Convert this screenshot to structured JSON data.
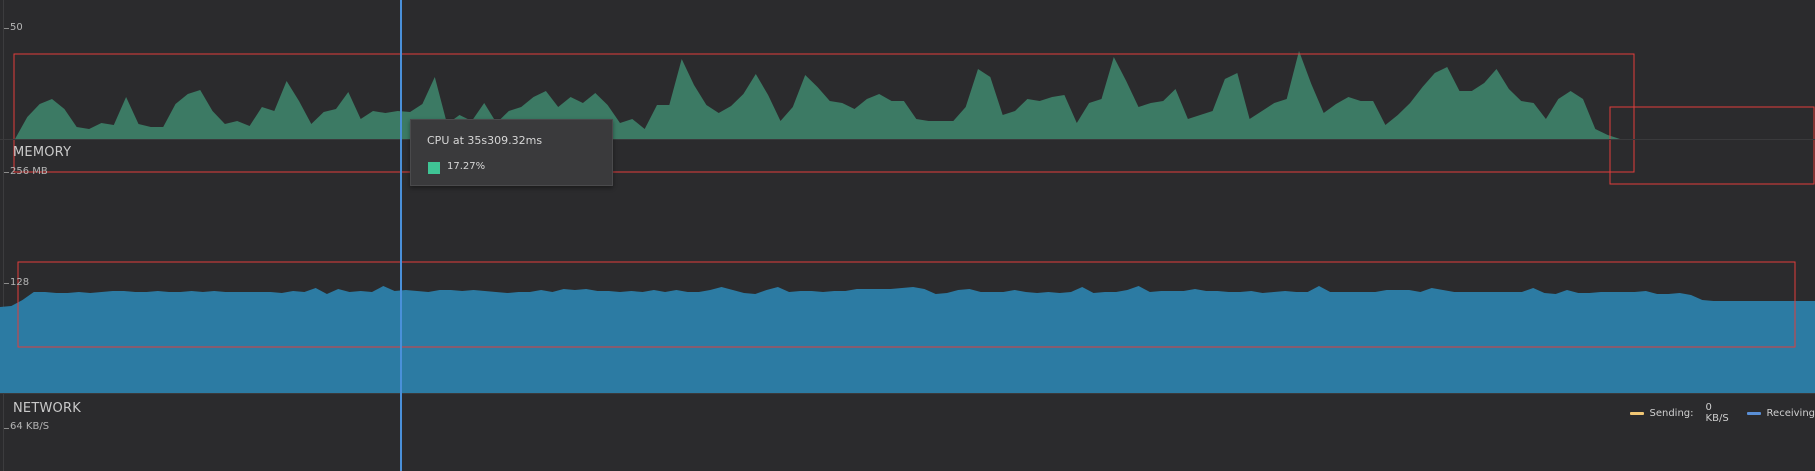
{
  "cpu": {
    "axis_label": "50",
    "series_color": "#3c7a64",
    "peaks": [
      0,
      22,
      35,
      40,
      30,
      12,
      10,
      16,
      14,
      42,
      15,
      12,
      12,
      35,
      45,
      49,
      28,
      15,
      18,
      13,
      32,
      28,
      58,
      38,
      15,
      27,
      30,
      47,
      20,
      28,
      26,
      28,
      27,
      35,
      62,
      15,
      24,
      18,
      36,
      16,
      28,
      32,
      42,
      48,
      32,
      42,
      36,
      46,
      34,
      16,
      20,
      10,
      34,
      34,
      80,
      54,
      34,
      26,
      33,
      45,
      65,
      44,
      18,
      32,
      64,
      52,
      38,
      36,
      30,
      40,
      45,
      38,
      38,
      20,
      18,
      18,
      18,
      32,
      70,
      62,
      24,
      28,
      40,
      38,
      42,
      44,
      16,
      36,
      40,
      82,
      58,
      32,
      36,
      38,
      50,
      20,
      24,
      28,
      60,
      66,
      20,
      28,
      36,
      40,
      88,
      55,
      26,
      35,
      42,
      38,
      38,
      14,
      24,
      36,
      52,
      66,
      72,
      48,
      48,
      56,
      70,
      50,
      38,
      36,
      20,
      40,
      48,
      40,
      10,
      4,
      0
    ]
  },
  "memory": {
    "title": "MEMORY",
    "axis_label": "256 MB",
    "axis_label_2": "128",
    "series_color": "#2c7ba3",
    "levels": [
      86,
      87,
      93,
      101,
      101,
      100,
      100,
      101,
      100,
      101,
      102,
      102,
      101,
      101,
      102,
      101,
      101,
      102,
      101,
      102,
      101,
      101,
      101,
      101,
      101,
      100,
      102,
      101,
      105,
      99,
      104,
      101,
      102,
      101,
      107,
      102,
      103,
      102,
      101,
      103,
      103,
      102,
      103,
      102,
      101,
      100,
      101,
      101,
      103,
      101,
      104,
      103,
      104,
      102,
      102,
      101,
      102,
      101,
      103,
      101,
      103,
      101,
      101,
      103,
      106,
      103,
      100,
      99,
      103,
      106,
      101,
      102,
      102,
      101,
      102,
      102,
      104,
      104,
      104,
      104,
      105,
      106,
      104,
      99,
      100,
      103,
      104,
      101,
      101,
      101,
      103,
      101,
      100,
      101,
      100,
      101,
      106,
      100,
      101,
      101,
      103,
      107,
      101,
      102,
      102,
      102,
      104,
      102,
      102,
      101,
      101,
      102,
      100,
      101,
      102,
      101,
      101,
      107,
      101,
      101,
      101,
      101,
      101,
      103,
      103,
      103,
      101,
      105,
      103,
      101,
      101,
      101,
      101,
      101,
      101,
      101,
      105,
      100,
      99,
      103,
      100,
      100,
      101,
      101,
      101,
      101,
      102,
      99,
      99,
      100,
      98,
      93,
      92,
      92,
      92,
      92,
      92,
      92,
      92,
      92,
      92,
      92
    ]
  },
  "network": {
    "title": "NETWORK",
    "axis_label": "64 KB/S",
    "legend": {
      "sending_label": "Sending:",
      "sending_value": "0 KB/S",
      "sending_color": "#f0c674",
      "receiving_label": "Receiving",
      "receiving_color": "#5a8fd6"
    }
  },
  "tooltip": {
    "title": "CPU at 35s309.32ms",
    "value": "17.27%",
    "swatch_color": "#3fc495"
  },
  "highlight_color": "#e03c3c"
}
